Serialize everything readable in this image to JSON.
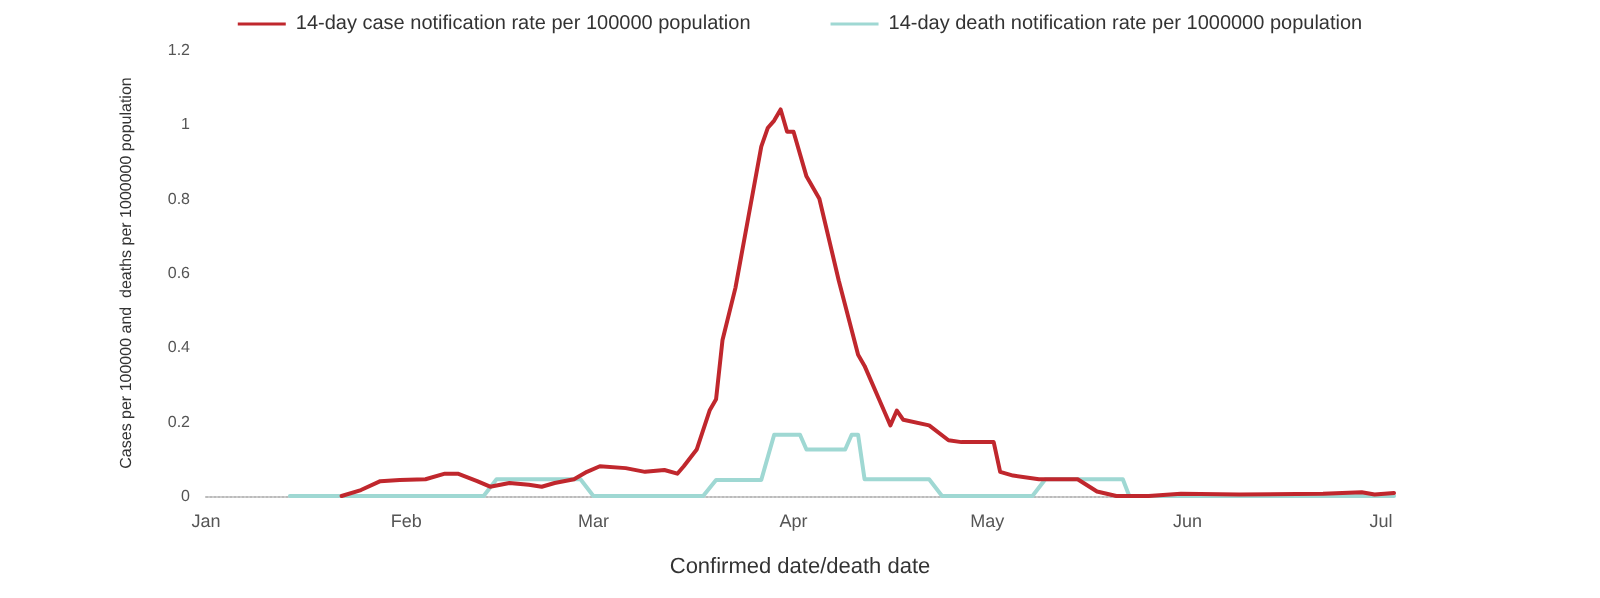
{
  "chart_data": {
    "type": "line",
    "xlabel": "Confirmed date/death date",
    "ylabel": "Cases per 100000 and  deaths per 1000000 population",
    "legend": "top",
    "grid": false,
    "marker": "none",
    "line_style": "solid",
    "xlim": [
      "--01-01",
      "--07-03"
    ],
    "xticks": [
      {
        "value": "--01-01",
        "label": "Jan"
      },
      {
        "value": "--02-01",
        "label": "Feb"
      },
      {
        "value": "--03-01",
        "label": "Mar"
      },
      {
        "value": "--04-01",
        "label": "Apr"
      },
      {
        "value": "--05-01",
        "label": "May"
      },
      {
        "value": "--06-01",
        "label": "Jun"
      },
      {
        "value": "--07-01",
        "label": "Jul"
      }
    ],
    "ylim": [
      0,
      1.2
    ],
    "yticks": [
      0,
      0.2,
      0.4,
      0.6,
      0.8,
      1,
      1.2
    ],
    "series": [
      {
        "name": "14-day case notification rate per 100000 population",
        "color": "#c0272d",
        "x": [
          "--01-22",
          "--01-25",
          "--01-28",
          "--01-31",
          "--02-04",
          "--02-07",
          "--02-09",
          "--02-12",
          "--02-14",
          "--02-17",
          "--02-20",
          "--02-22",
          "--02-24",
          "--02-27",
          "--02-29",
          "--03-02",
          "--03-06",
          "--03-09",
          "--03-12",
          "--03-14",
          "--03-15",
          "--03-17",
          "--03-19",
          "--03-20",
          "--03-21",
          "--03-23",
          "--03-25",
          "--03-27",
          "--03-28",
          "--03-29",
          "--03-30",
          "--03-31",
          "--04-01",
          "--04-03",
          "--04-05",
          "--04-08",
          "--04-11",
          "--04-12",
          "--04-15",
          "--04-16",
          "--04-17",
          "--04-18",
          "--04-22",
          "--04-25",
          "--04-27",
          "--05-02",
          "--05-03",
          "--05-05",
          "--05-09",
          "--05-15",
          "--05-18",
          "--05-21",
          "--05-26",
          "--05-31",
          "--06-09",
          "--06-22",
          "--06-28",
          "--06-30",
          "--07-03"
        ],
        "values": [
          0,
          0.016,
          0.04,
          0.043,
          0.045,
          0.06,
          0.06,
          0.04,
          0.025,
          0.035,
          0.03,
          0.025,
          0.035,
          0.045,
          0.065,
          0.08,
          0.075,
          0.065,
          0.07,
          0.06,
          0.08,
          0.125,
          0.23,
          0.26,
          0.42,
          0.56,
          0.75,
          0.94,
          0.99,
          1.01,
          1.04,
          0.98,
          0.98,
          0.86,
          0.8,
          0.58,
          0.38,
          0.35,
          0.23,
          0.19,
          0.23,
          0.205,
          0.19,
          0.15,
          0.145,
          0.145,
          0.065,
          0.055,
          0.045,
          0.045,
          0.012,
          0,
          0,
          0.006,
          0.004,
          0.006,
          0.01,
          0.004,
          0.008
        ]
      },
      {
        "name": "14-day death notification rate per 1000000 population",
        "color": "#9fd8d3",
        "x": [
          "--01-14",
          "--02-13",
          "--02-15",
          "--02-28",
          "--03-01",
          "--03-18",
          "--03-20",
          "--03-27",
          "--03-29",
          "--04-02",
          "--04-03",
          "--04-09",
          "--04-10",
          "--04-11",
          "--04-12",
          "--04-22",
          "--04-24",
          "--05-08",
          "--05-10",
          "--05-22",
          "--05-23",
          "--07-03"
        ],
        "values": [
          0,
          0,
          0.045,
          0.045,
          0,
          0,
          0.043,
          0.043,
          0.165,
          0.165,
          0.125,
          0.125,
          0.165,
          0.165,
          0.045,
          0.045,
          0,
          0,
          0.045,
          0.045,
          0,
          0
        ]
      }
    ]
  }
}
